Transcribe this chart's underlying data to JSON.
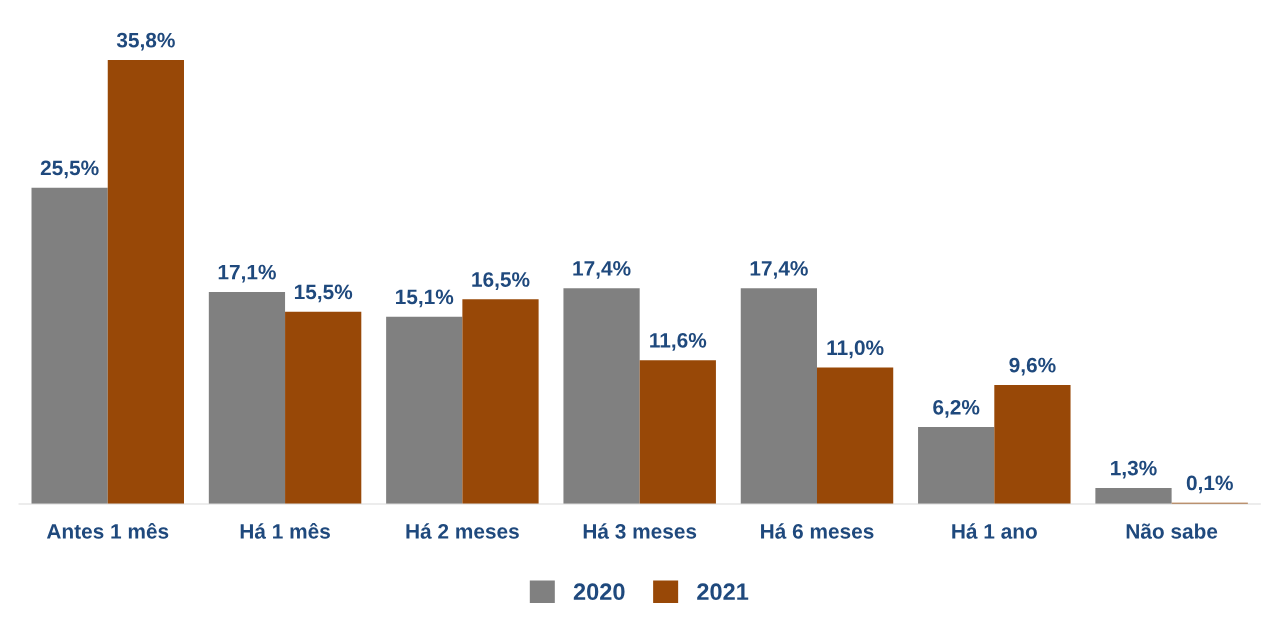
{
  "chart_data": {
    "type": "bar",
    "categories": [
      "Antes 1 mês",
      "Há 1 mês",
      "Há 2 meses",
      "Há 3 meses",
      "Há 6 meses",
      "Há 1 ano",
      "Não sabe"
    ],
    "series": [
      {
        "name": "2020",
        "color": "#808080",
        "values": [
          25.5,
          17.1,
          15.1,
          17.4,
          17.4,
          6.2,
          1.3
        ],
        "value_labels": [
          "25,5%",
          "17,1%",
          "15,1%",
          "17,4%",
          "17,4%",
          "6,2%",
          "1,3%"
        ]
      },
      {
        "name": "2021",
        "color": "#984807",
        "values": [
          35.8,
          15.5,
          16.5,
          11.6,
          11.0,
          9.6,
          0.1
        ],
        "value_labels": [
          "35,8%",
          "15,5%",
          "16,5%",
          "11,6%",
          "11,0%",
          "9,6%",
          "0,1%"
        ]
      }
    ],
    "legend": "bottom",
    "grid": false
  }
}
